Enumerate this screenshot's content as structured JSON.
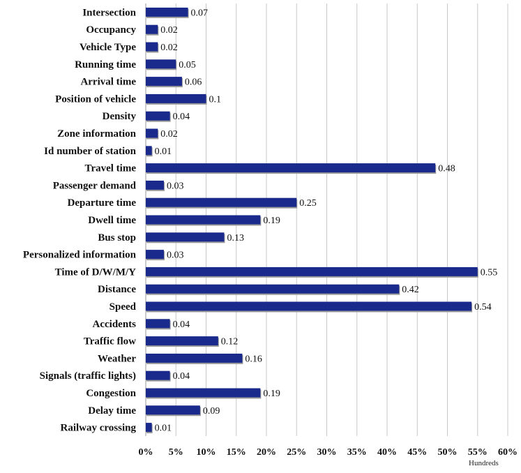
{
  "chart_data": {
    "type": "bar",
    "orientation": "horizontal",
    "categories": [
      "Intersection",
      "Occupancy",
      "Vehicle Type",
      "Running time",
      "Arrival time",
      "Position of vehicle",
      "Density",
      "Zone information",
      "Id number of station",
      "Travel time",
      "Passenger demand",
      "Departure time",
      "Dwell time",
      "Bus stop",
      "Personalized information",
      "Time of D/W/M/Y",
      "Distance",
      "Speed",
      "Accidents",
      "Traffic flow",
      "Weather",
      "Signals (traffic lights)",
      "Congestion",
      "Delay time",
      "Railway crossing"
    ],
    "values": [
      0.07,
      0.02,
      0.02,
      0.05,
      0.06,
      0.1,
      0.04,
      0.02,
      0.01,
      0.48,
      0.03,
      0.25,
      0.19,
      0.13,
      0.03,
      0.55,
      0.42,
      0.54,
      0.04,
      0.12,
      0.16,
      0.04,
      0.19,
      0.09,
      0.01
    ],
    "data_labels": [
      "0.07",
      "0.02",
      "0.02",
      "0.05",
      "0.06",
      "0.1",
      "0.04",
      "0.02",
      "0.01",
      "0.48",
      "0.03",
      "0.25",
      "0.19",
      "0.13",
      "0.03",
      "0.55",
      "0.42",
      "0.54",
      "0.04",
      "0.12",
      "0.16",
      "0.04",
      "0.19",
      "0.09",
      "0.01"
    ],
    "x_ticks": [
      0,
      0.05,
      0.1,
      0.15,
      0.2,
      0.25,
      0.3,
      0.35,
      0.4,
      0.45,
      0.5,
      0.55,
      0.6
    ],
    "x_tick_labels": [
      "0%",
      "5%",
      "10%",
      "15%",
      "20%",
      "25%",
      "30%",
      "35%",
      "40%",
      "45%",
      "50%",
      "55%",
      "60%"
    ],
    "xlim": [
      0,
      0.6
    ],
    "x_unit_label": "Hundreds",
    "grid": "vertical",
    "legend": "none",
    "bar_color": "#1a2a8c",
    "bar_shadow_color": "#9a9a9a",
    "grid_color": "#c8c8c8"
  }
}
